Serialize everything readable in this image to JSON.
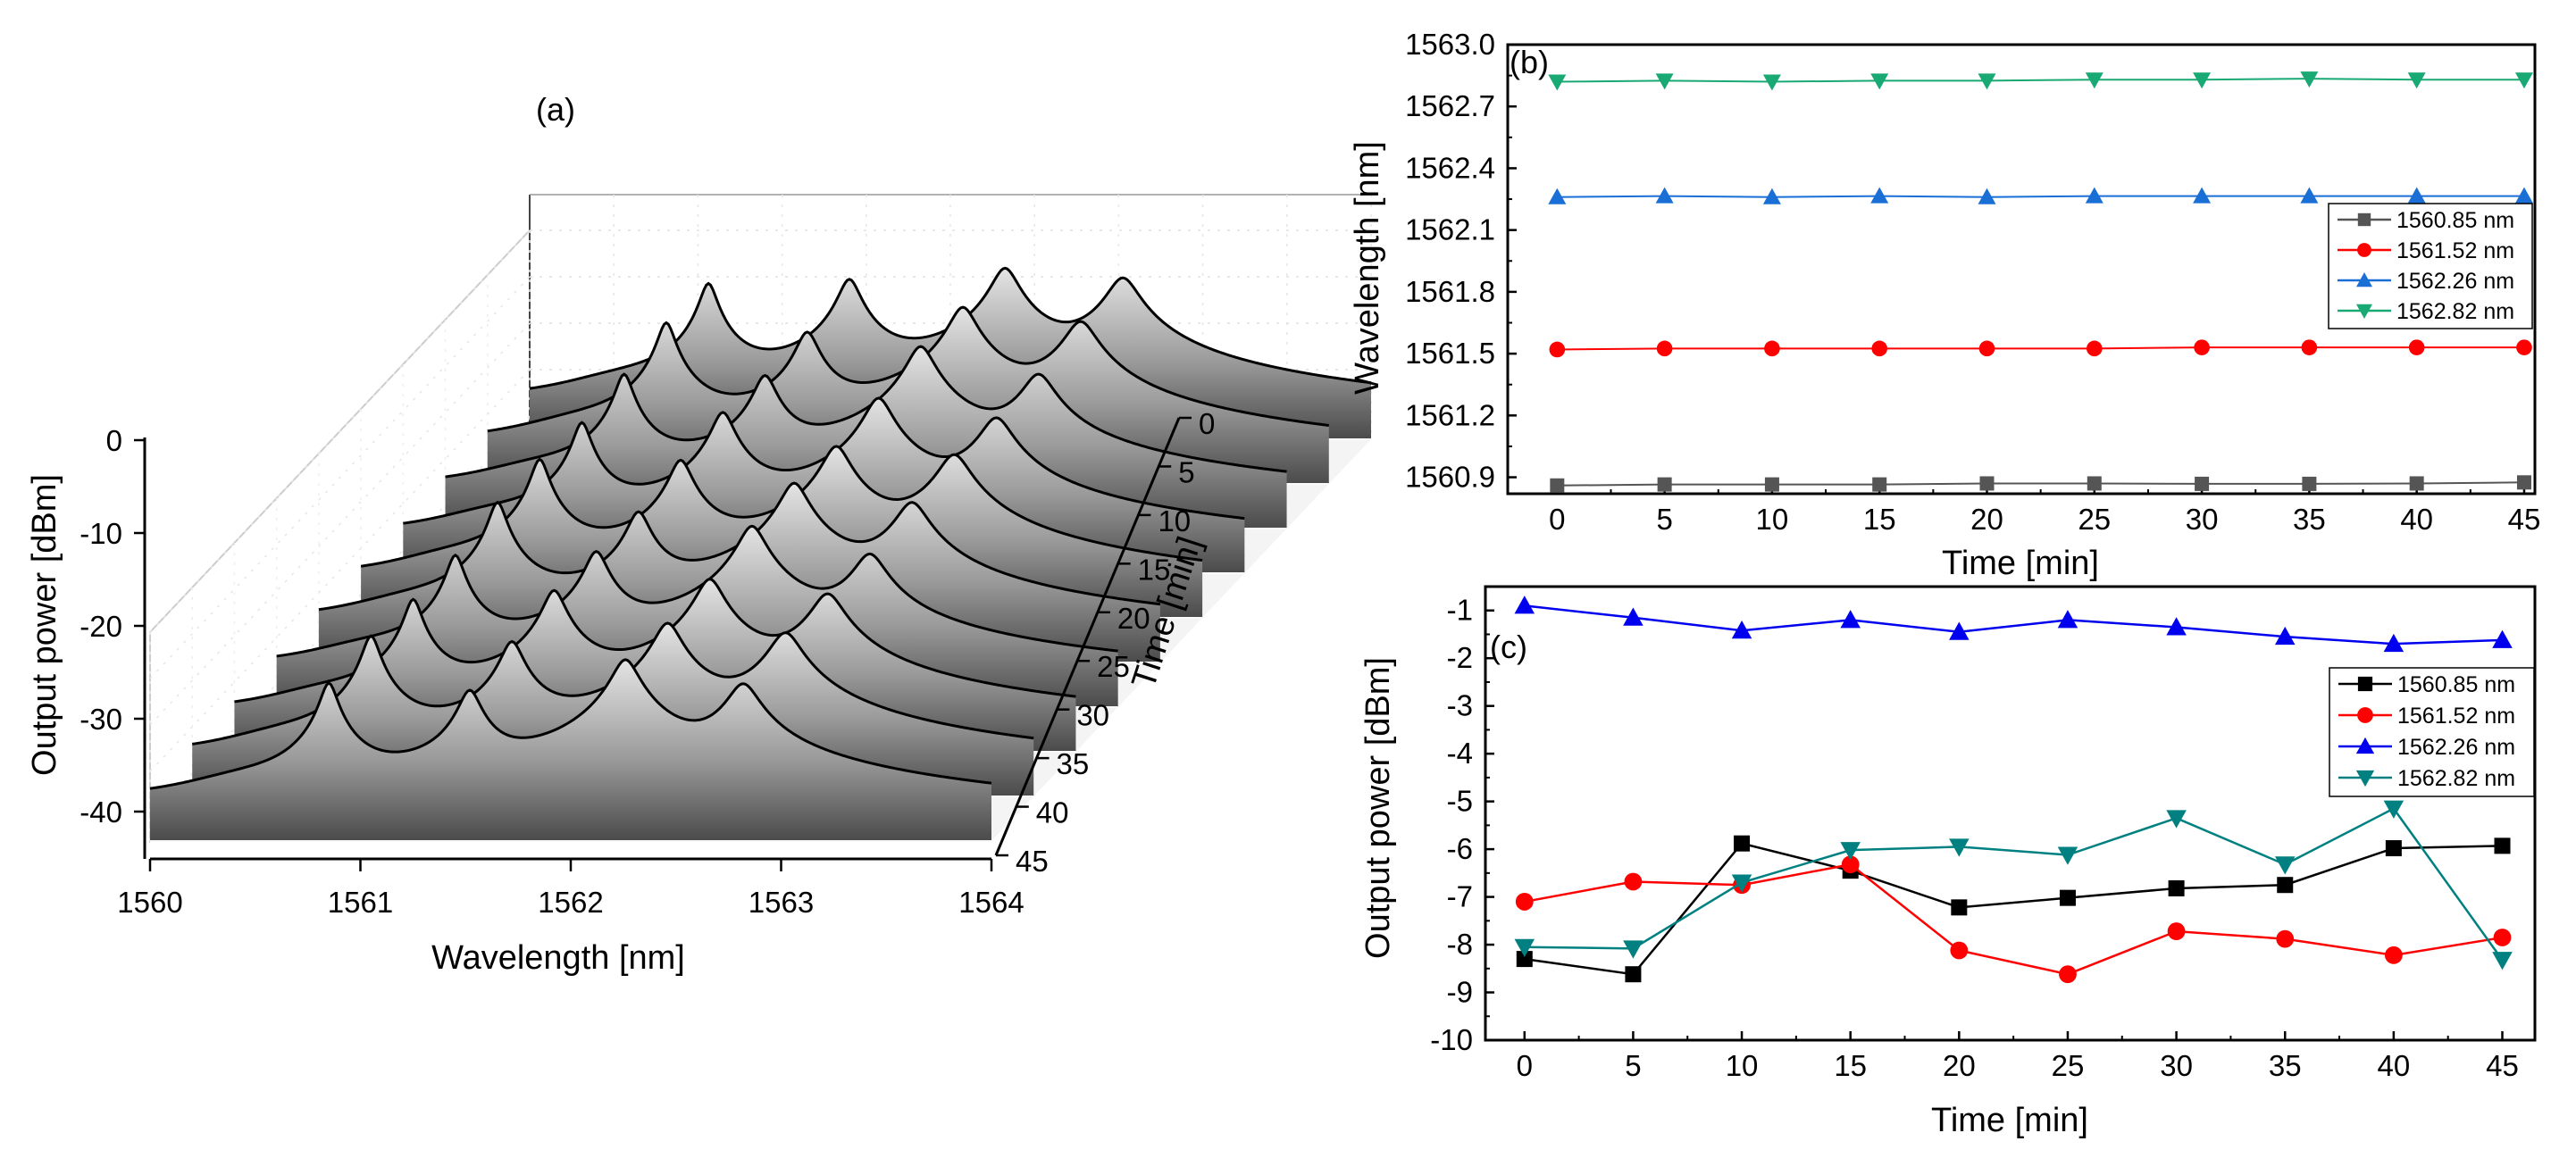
{
  "colors": {
    "black": "#000000",
    "gray_series": "#555555",
    "red": "#ff0000",
    "blue_b": "#1a6fd6",
    "green_b": "#19a974",
    "blue_c": "#0000ee",
    "teal_c": "#008080",
    "waterfall_dark": "#4a4a4a",
    "waterfall_light": "#e2e2e2"
  },
  "chart_data": [
    {
      "id": "a",
      "type": "area",
      "panel_label": "(a)",
      "title": "",
      "xlabel": "Wavelength [nm]",
      "ylabel": "Output power [dBm]",
      "zlabel": "Time [min]",
      "xlim": [
        1560,
        1564
      ],
      "ylim": [
        -45,
        0
      ],
      "x_ticks": [
        "1560",
        "1561",
        "1562",
        "1563",
        "1564"
      ],
      "y_ticks": [
        "0",
        "-10",
        "-20",
        "-30",
        "-40"
      ],
      "time_ticks": [
        "0",
        "5",
        "10",
        "15",
        "20",
        "25",
        "30",
        "35",
        "40",
        "45"
      ],
      "times": [
        0,
        5,
        10,
        15,
        20,
        25,
        30,
        35,
        40,
        45
      ],
      "peaks_nm": [
        1560.85,
        1561.52,
        1562.26,
        1562.82
      ],
      "peak_power_dBm": [
        -11.5,
        -11.5,
        -7,
        -11
      ],
      "noise_floor_dBm": -43
    },
    {
      "id": "b",
      "type": "line",
      "panel_label": "(b)",
      "xlabel": "Time [min]",
      "ylabel": "Wavelength [nm]",
      "xlim": [
        -2.3,
        45.5
      ],
      "ylim": [
        1560.82,
        1563.0
      ],
      "x": [
        0,
        5,
        10,
        15,
        20,
        25,
        30,
        35,
        40,
        45
      ],
      "x_ticks": [
        0,
        5,
        10,
        15,
        20,
        25,
        30,
        35,
        40,
        45
      ],
      "y_ticks": [
        "1560.9",
        "1561.2",
        "1561.5",
        "1561.8",
        "1562.1",
        "1562.4",
        "1562.7",
        "1563.0"
      ],
      "y_tick_values": [
        1560.9,
        1561.2,
        1561.5,
        1561.8,
        1562.1,
        1562.4,
        1562.7,
        1563.0
      ],
      "legend_position": "right",
      "series": [
        {
          "name": "1560.85 nm",
          "marker": "square",
          "color": "#555555",
          "values": [
            1560.86,
            1560.865,
            1560.865,
            1560.865,
            1560.87,
            1560.87,
            1560.868,
            1560.868,
            1560.87,
            1560.875
          ]
        },
        {
          "name": "1561.52 nm",
          "marker": "circle",
          "color": "#ff0000",
          "values": [
            1561.52,
            1561.525,
            1561.525,
            1561.525,
            1561.525,
            1561.525,
            1561.53,
            1561.53,
            1561.53,
            1561.53
          ]
        },
        {
          "name": "1562.26 nm",
          "marker": "triangle-up",
          "color": "#1a6fd6",
          "values": [
            1562.26,
            1562.265,
            1562.26,
            1562.265,
            1562.26,
            1562.265,
            1562.265,
            1562.265,
            1562.265,
            1562.265
          ]
        },
        {
          "name": "1562.82 nm",
          "marker": "triangle-down",
          "color": "#19a974",
          "values": [
            1562.82,
            1562.825,
            1562.82,
            1562.825,
            1562.825,
            1562.83,
            1562.83,
            1562.835,
            1562.83,
            1562.83
          ]
        }
      ]
    },
    {
      "id": "c",
      "type": "line",
      "panel_label": "(c)",
      "xlabel": "Time [min]",
      "ylabel": "Output power [dBm]",
      "xlim": [
        -1.8,
        46.5
      ],
      "ylim": [
        -10,
        -0.5
      ],
      "x": [
        0,
        5,
        10,
        15,
        20,
        25,
        30,
        35,
        40,
        45
      ],
      "x_ticks": [
        0,
        5,
        10,
        15,
        20,
        25,
        30,
        35,
        40,
        45
      ],
      "y_ticks": [
        "-1",
        "-2",
        "-3",
        "-4",
        "-5",
        "-6",
        "-7",
        "-8",
        "-9",
        "-10"
      ],
      "y_tick_values": [
        -1,
        -2,
        -3,
        -4,
        -5,
        -6,
        -7,
        -8,
        -9,
        -10
      ],
      "legend_position": "right",
      "series": [
        {
          "name": "1560.85 nm",
          "marker": "square",
          "color": "#000000",
          "values": [
            -8.3,
            -8.62,
            -5.88,
            -6.45,
            -7.22,
            -7.02,
            -6.82,
            -6.75,
            -5.98,
            -5.93
          ]
        },
        {
          "name": "1561.52 nm",
          "marker": "circle",
          "color": "#ff0000",
          "values": [
            -7.1,
            -6.68,
            -6.75,
            -6.32,
            -8.12,
            -8.62,
            -7.72,
            -7.88,
            -8.22,
            -7.85
          ]
        },
        {
          "name": "1562.26 nm",
          "marker": "triangle-up",
          "color": "#0000ee",
          "values": [
            -0.9,
            -1.15,
            -1.42,
            -1.2,
            -1.45,
            -1.2,
            -1.35,
            -1.55,
            -1.7,
            -1.62
          ]
        },
        {
          "name": "1562.82 nm",
          "marker": "triangle-down",
          "color": "#008080",
          "values": [
            -8.05,
            -8.08,
            -6.7,
            -6.02,
            -5.95,
            -6.12,
            -5.35,
            -6.32,
            -5.15,
            -8.32
          ]
        }
      ]
    }
  ]
}
